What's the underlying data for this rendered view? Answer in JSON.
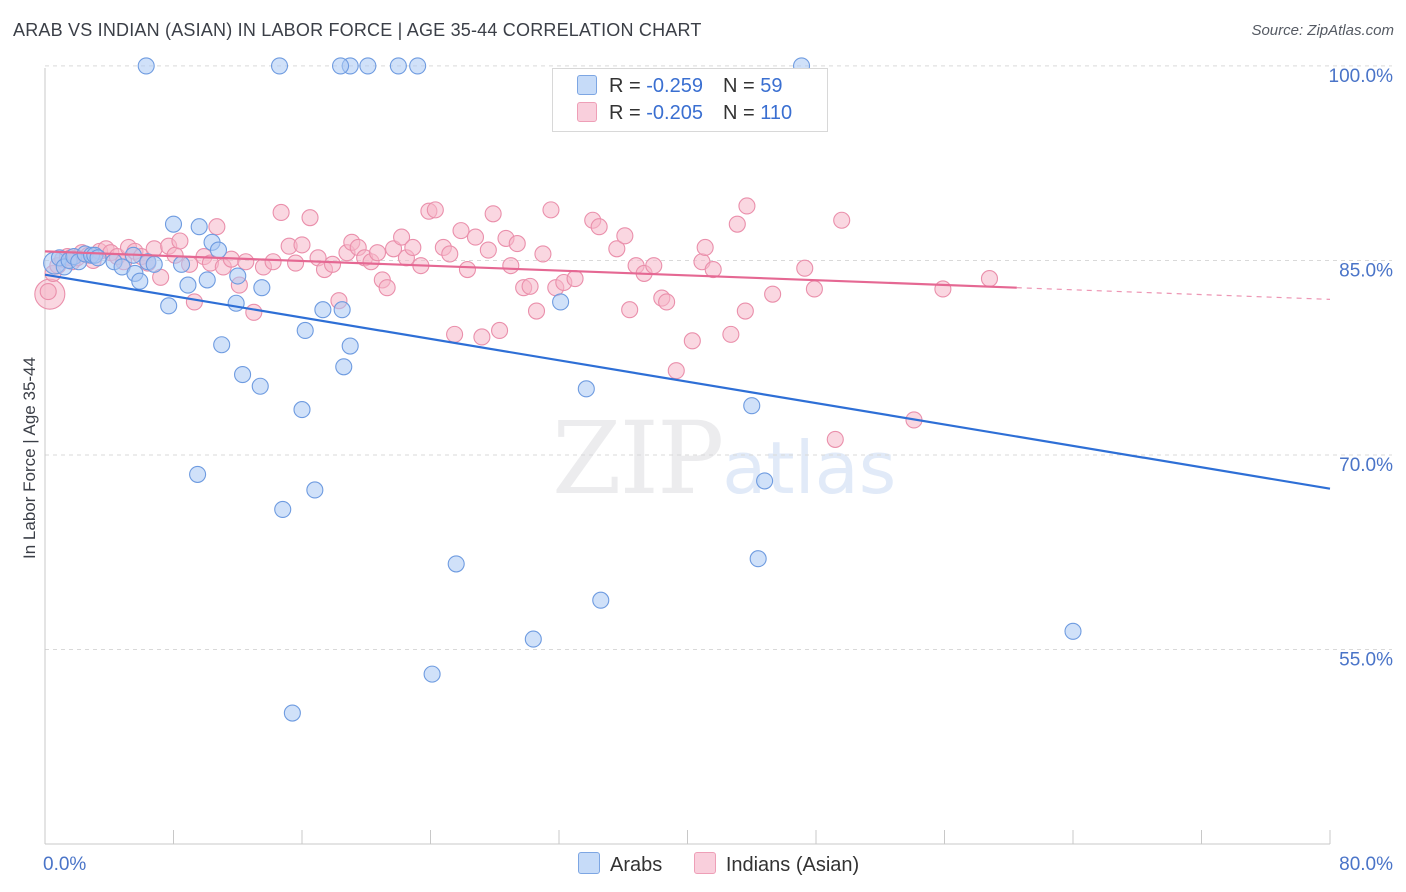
{
  "header": {
    "title": "ARAB VS INDIAN (ASIAN) IN LABOR FORCE | AGE 35-44 CORRELATION CHART",
    "source": "Source: ZipAtlas.com"
  },
  "legend": {
    "rows": [
      {
        "r_label": "R = ",
        "r_value": "-0.259",
        "n_label": "N = ",
        "n_value": "59",
        "color": "#a9c8f4"
      },
      {
        "r_label": "R = ",
        "r_value": "-0.205",
        "n_label": "N = ",
        "n_value": "110",
        "color": "#f6b6c9"
      }
    ]
  },
  "bottom_legend": {
    "arabs": "Arabs",
    "indians": "Indians (Asian)"
  },
  "watermark": {
    "zip": "ZIP",
    "atlas": "atlas"
  },
  "colors": {
    "arabs_fill": "#a9c8f4",
    "arabs_stroke": "#6e9be0",
    "arabs_line": "#2e6fd6",
    "indians_fill": "#f6b6c9",
    "indians_stroke": "#ea8fab",
    "indians_line": "#e56893",
    "tick_text": "#4a74c8"
  },
  "chart_data": {
    "type": "scatter",
    "title": "ARAB VS INDIAN (ASIAN) IN LABOR FORCE | AGE 35-44 CORRELATION CHART",
    "xlabel": "",
    "ylabel": "In Labor Force | Age 35-44",
    "xlim": [
      0,
      80
    ],
    "ylim": [
      40,
      102
    ],
    "x_ticks": [
      "0.0%",
      "80.0%"
    ],
    "y_ticks": [
      {
        "value": 55,
        "label": "55.0%"
      },
      {
        "value": 70,
        "label": "70.0%"
      },
      {
        "value": 85,
        "label": "85.0%"
      },
      {
        "value": 100,
        "label": "100.0%"
      }
    ],
    "grid": "horizontal dashed",
    "legend_position": "top-center",
    "series": [
      {
        "name": "Arabs",
        "r": -0.259,
        "n": 59,
        "trend": {
          "x0": 0,
          "y0": 83.9,
          "x1": 80,
          "y1": 67.4
        },
        "points": [
          [
            0.6,
            84.8
          ],
          [
            0.9,
            85.2
          ],
          [
            1.2,
            84.5
          ],
          [
            1.5,
            85.0
          ],
          [
            1.8,
            85.3
          ],
          [
            2.1,
            84.9
          ],
          [
            2.5,
            85.5
          ],
          [
            2.9,
            85.4
          ],
          [
            3.1,
            85.4
          ],
          [
            3.3,
            85.2
          ],
          [
            4.3,
            84.9
          ],
          [
            4.8,
            84.5
          ],
          [
            5.5,
            85.4
          ],
          [
            5.6,
            84.0
          ],
          [
            5.9,
            83.4
          ],
          [
            6.4,
            84.9
          ],
          [
            6.8,
            84.7
          ],
          [
            7.7,
            81.5
          ],
          [
            8.0,
            87.8
          ],
          [
            8.5,
            84.7
          ],
          [
            8.9,
            83.1
          ],
          [
            9.6,
            87.6
          ],
          [
            10.4,
            86.4
          ],
          [
            10.8,
            85.8
          ],
          [
            10.1,
            83.5
          ],
          [
            11.0,
            78.5
          ],
          [
            11.9,
            81.7
          ],
          [
            12.3,
            76.2
          ],
          [
            12.0,
            83.8
          ],
          [
            13.5,
            82.9
          ],
          [
            13.4,
            75.3
          ],
          [
            14.8,
            65.8
          ],
          [
            15.4,
            50.1
          ],
          [
            16.0,
            73.5
          ],
          [
            16.2,
            79.6
          ],
          [
            16.8,
            67.3
          ],
          [
            17.3,
            81.2
          ],
          [
            18.5,
            81.2
          ],
          [
            18.6,
            76.8
          ],
          [
            19.0,
            78.4
          ],
          [
            9.5,
            68.5
          ],
          [
            20.1,
            100.0
          ],
          [
            24.1,
            53.1
          ],
          [
            25.6,
            61.6
          ],
          [
            30.4,
            55.8
          ],
          [
            32.1,
            81.8
          ],
          [
            33.7,
            75.1
          ],
          [
            34.6,
            58.8
          ],
          [
            44.0,
            73.8
          ],
          [
            44.4,
            62.0
          ],
          [
            44.8,
            68.0
          ],
          [
            47.1,
            100.0
          ],
          [
            19.0,
            100.0
          ],
          [
            6.3,
            100.0
          ],
          [
            22.0,
            100.0
          ],
          [
            18.4,
            100.0
          ],
          [
            14.6,
            100.0
          ],
          [
            23.2,
            100.0
          ],
          [
            64.0,
            56.4
          ]
        ]
      },
      {
        "name": "Indians (Asian)",
        "r": -0.205,
        "n": 110,
        "trend": {
          "x0": 0,
          "y0": 85.7,
          "x1": 60.5,
          "y1": 82.9
        },
        "points": [
          [
            0.3,
            82.4
          ],
          [
            0.5,
            84.0
          ],
          [
            0.8,
            84.6
          ],
          [
            1.1,
            85.1
          ],
          [
            1.4,
            85.3
          ],
          [
            1.7,
            84.9
          ],
          [
            2.0,
            85.2
          ],
          [
            2.3,
            85.6
          ],
          [
            2.7,
            85.4
          ],
          [
            3.0,
            85.0
          ],
          [
            3.4,
            85.7
          ],
          [
            3.8,
            85.9
          ],
          [
            4.1,
            85.6
          ],
          [
            4.5,
            85.3
          ],
          [
            4.9,
            84.9
          ],
          [
            5.2,
            86.0
          ],
          [
            5.6,
            85.7
          ],
          [
            6.0,
            85.3
          ],
          [
            6.4,
            84.8
          ],
          [
            6.8,
            85.9
          ],
          [
            7.2,
            83.7
          ],
          [
            7.7,
            86.1
          ],
          [
            8.1,
            85.4
          ],
          [
            8.4,
            86.5
          ],
          [
            9.0,
            84.7
          ],
          [
            9.3,
            81.8
          ],
          [
            9.9,
            85.3
          ],
          [
            10.3,
            84.8
          ],
          [
            10.7,
            87.6
          ],
          [
            11.1,
            84.5
          ],
          [
            11.6,
            85.1
          ],
          [
            12.1,
            83.1
          ],
          [
            12.5,
            84.9
          ],
          [
            13.0,
            81.0
          ],
          [
            13.6,
            84.5
          ],
          [
            14.2,
            84.9
          ],
          [
            14.7,
            88.7
          ],
          [
            15.2,
            86.1
          ],
          [
            15.6,
            84.8
          ],
          [
            16.0,
            86.2
          ],
          [
            16.5,
            88.3
          ],
          [
            17.0,
            85.2
          ],
          [
            17.4,
            84.3
          ],
          [
            17.9,
            84.7
          ],
          [
            18.3,
            81.9
          ],
          [
            18.8,
            85.6
          ],
          [
            19.1,
            86.4
          ],
          [
            19.5,
            86.0
          ],
          [
            19.9,
            85.2
          ],
          [
            20.3,
            84.9
          ],
          [
            20.7,
            85.6
          ],
          [
            21.0,
            83.5
          ],
          [
            21.3,
            82.9
          ],
          [
            21.7,
            85.9
          ],
          [
            22.2,
            86.8
          ],
          [
            22.5,
            85.2
          ],
          [
            22.9,
            86.0
          ],
          [
            23.4,
            84.6
          ],
          [
            23.9,
            88.8
          ],
          [
            24.3,
            88.9
          ],
          [
            24.8,
            86.0
          ],
          [
            25.2,
            85.5
          ],
          [
            25.5,
            79.3
          ],
          [
            25.9,
            87.3
          ],
          [
            26.3,
            84.3
          ],
          [
            26.8,
            86.8
          ],
          [
            27.2,
            79.1
          ],
          [
            27.6,
            85.8
          ],
          [
            27.9,
            88.6
          ],
          [
            28.3,
            79.6
          ],
          [
            28.7,
            86.7
          ],
          [
            29.0,
            84.6
          ],
          [
            29.4,
            86.3
          ],
          [
            29.8,
            82.9
          ],
          [
            30.2,
            83.0
          ],
          [
            30.6,
            81.1
          ],
          [
            31.0,
            85.5
          ],
          [
            31.5,
            88.9
          ],
          [
            31.8,
            82.9
          ],
          [
            32.3,
            83.3
          ],
          [
            33.0,
            83.6
          ],
          [
            34.1,
            88.1
          ],
          [
            34.5,
            87.6
          ],
          [
            35.6,
            85.9
          ],
          [
            36.1,
            86.9
          ],
          [
            36.4,
            81.2
          ],
          [
            36.8,
            84.6
          ],
          [
            37.3,
            84.0
          ],
          [
            37.9,
            84.6
          ],
          [
            38.4,
            82.1
          ],
          [
            38.7,
            81.8
          ],
          [
            39.3,
            76.5
          ],
          [
            40.3,
            78.8
          ],
          [
            40.9,
            84.9
          ],
          [
            41.1,
            86.0
          ],
          [
            41.6,
            84.3
          ],
          [
            42.7,
            79.3
          ],
          [
            43.1,
            87.8
          ],
          [
            43.6,
            81.1
          ],
          [
            43.7,
            89.2
          ],
          [
            45.3,
            82.4
          ],
          [
            47.3,
            84.4
          ],
          [
            47.9,
            82.8
          ],
          [
            49.6,
            88.1
          ],
          [
            49.2,
            71.2
          ],
          [
            54.1,
            72.7
          ],
          [
            55.9,
            82.8
          ],
          [
            58.8,
            83.6
          ],
          [
            0.2,
            82.6
          ],
          [
            1.6,
            85.2
          ]
        ]
      }
    ]
  }
}
